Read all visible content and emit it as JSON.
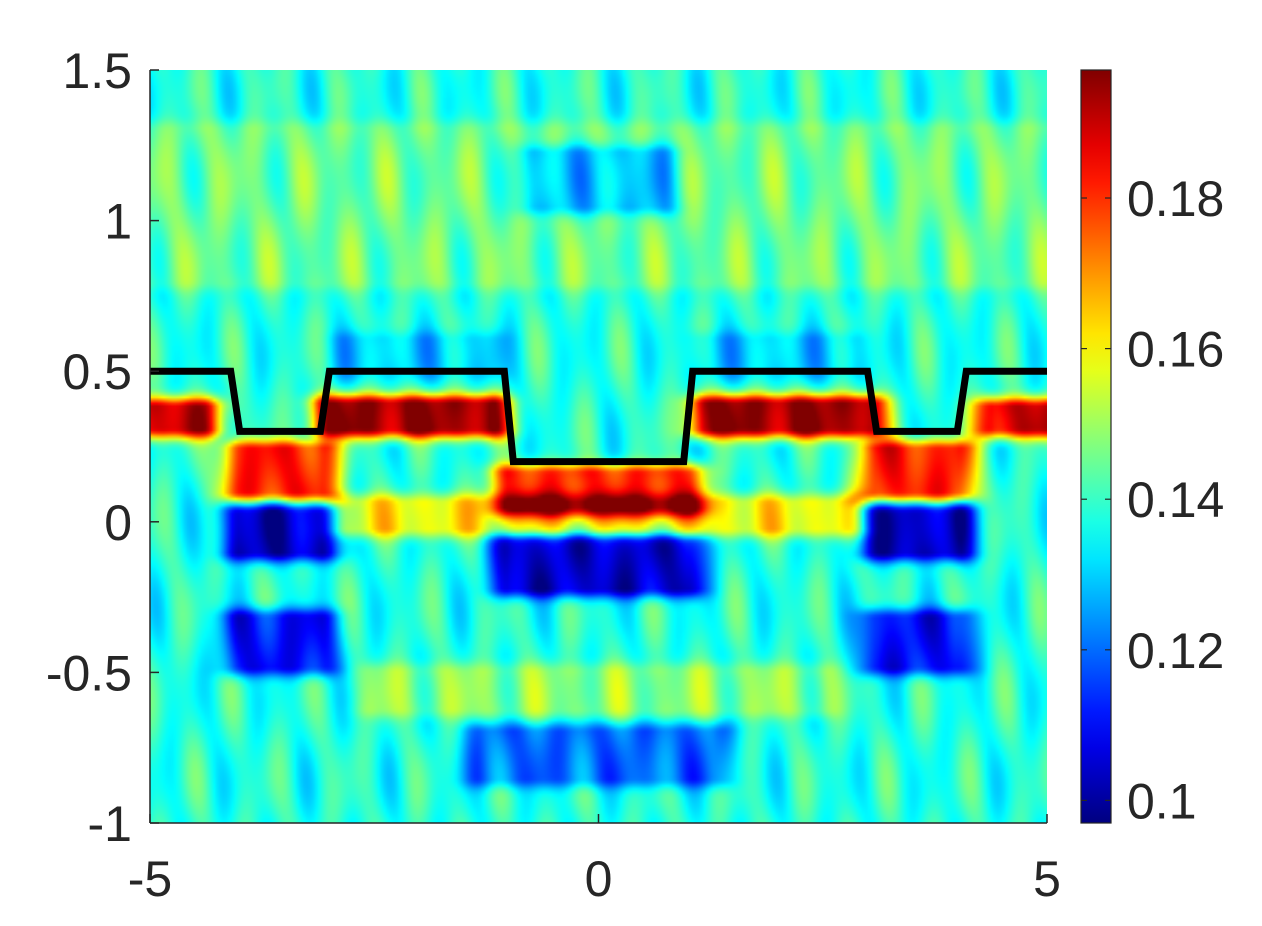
{
  "chart_data": {
    "type": "heatmap",
    "title": "",
    "xlabel": "",
    "ylabel": "",
    "xlim": [
      -5,
      5
    ],
    "ylim": [
      -1,
      1.5
    ],
    "x_ticks": [
      -5,
      0,
      5
    ],
    "x_tick_labels": [
      "-5",
      "0",
      "5"
    ],
    "y_ticks": [
      -1,
      -0.5,
      0,
      0.5,
      1,
      1.5
    ],
    "y_tick_labels": [
      "-1",
      "-0.5",
      "0",
      "0.5",
      "1",
      "1.5"
    ],
    "colormap": "jet",
    "colorbar": {
      "range": [
        0.097,
        0.197
      ],
      "ticks": [
        0.1,
        0.12,
        0.14,
        0.16,
        0.18
      ],
      "tick_labels": [
        "0.1",
        "0.12",
        "0.14",
        "0.16",
        "0.18"
      ]
    },
    "background_value": 0.138,
    "field_features": [
      {
        "x": [
          -5.0,
          -4.4
        ],
        "y": [
          0.31,
          0.38
        ],
        "value": 0.19
      },
      {
        "x": [
          -3.0,
          -1.2
        ],
        "y": [
          0.31,
          0.39
        ],
        "value": 0.195
      },
      {
        "x": [
          1.2,
          3.0
        ],
        "y": [
          0.31,
          0.39
        ],
        "value": 0.195
      },
      {
        "x": [
          4.4,
          5.0
        ],
        "y": [
          0.31,
          0.38
        ],
        "value": 0.19
      },
      {
        "x": [
          -4.0,
          -3.1
        ],
        "y": [
          0.1,
          0.24
        ],
        "value": 0.182
      },
      {
        "x": [
          3.1,
          4.0
        ],
        "y": [
          0.1,
          0.24
        ],
        "value": 0.182
      },
      {
        "x": [
          -1.0,
          1.0
        ],
        "y": [
          0.05,
          0.16
        ],
        "value": 0.18
      },
      {
        "x": [
          -2.8,
          2.8
        ],
        "y": [
          -0.02,
          0.06
        ],
        "value": 0.16
      },
      {
        "x": [
          -4.0,
          -3.1
        ],
        "y": [
          -0.1,
          0.03
        ],
        "value": 0.103
      },
      {
        "x": [
          3.1,
          4.0
        ],
        "y": [
          -0.1,
          0.03
        ],
        "value": 0.103
      },
      {
        "x": [
          -1.0,
          1.0
        ],
        "y": [
          -0.22,
          -0.07
        ],
        "value": 0.104
      },
      {
        "x": [
          -4.0,
          -3.1
        ],
        "y": [
          -0.48,
          -0.32
        ],
        "value": 0.11
      },
      {
        "x": [
          3.1,
          4.0
        ],
        "y": [
          -0.48,
          -0.32
        ],
        "value": 0.11
      },
      {
        "x": [
          -1.3,
          1.3
        ],
        "y": [
          -0.85,
          -0.7
        ],
        "value": 0.12
      },
      {
        "x": [
          -0.7,
          0.7
        ],
        "y": [
          1.05,
          1.22
        ],
        "value": 0.122
      },
      {
        "x": [
          -2.8,
          -1.2
        ],
        "y": [
          0.5,
          0.6
        ],
        "value": 0.13
      },
      {
        "x": [
          1.2,
          2.8
        ],
        "y": [
          0.5,
          0.6
        ],
        "value": 0.13
      },
      {
        "x": [
          -5.0,
          5.0
        ],
        "y": [
          0.8,
          1.3
        ],
        "value": 0.145
      },
      {
        "x": [
          -2.5,
          2.5
        ],
        "y": [
          -0.62,
          -0.5
        ],
        "value": 0.148
      }
    ],
    "boundary_curve": {
      "name": "",
      "color": "#000000",
      "x": [
        -5,
        -4.1,
        -4.0,
        -3.1,
        -3.0,
        -1.05,
        -0.95,
        0.95,
        1.05,
        3.0,
        3.1,
        4.0,
        4.1,
        5
      ],
      "y": [
        0.5,
        0.5,
        0.3,
        0.3,
        0.5,
        0.5,
        0.2,
        0.2,
        0.5,
        0.5,
        0.3,
        0.3,
        0.5,
        0.5
      ]
    }
  }
}
